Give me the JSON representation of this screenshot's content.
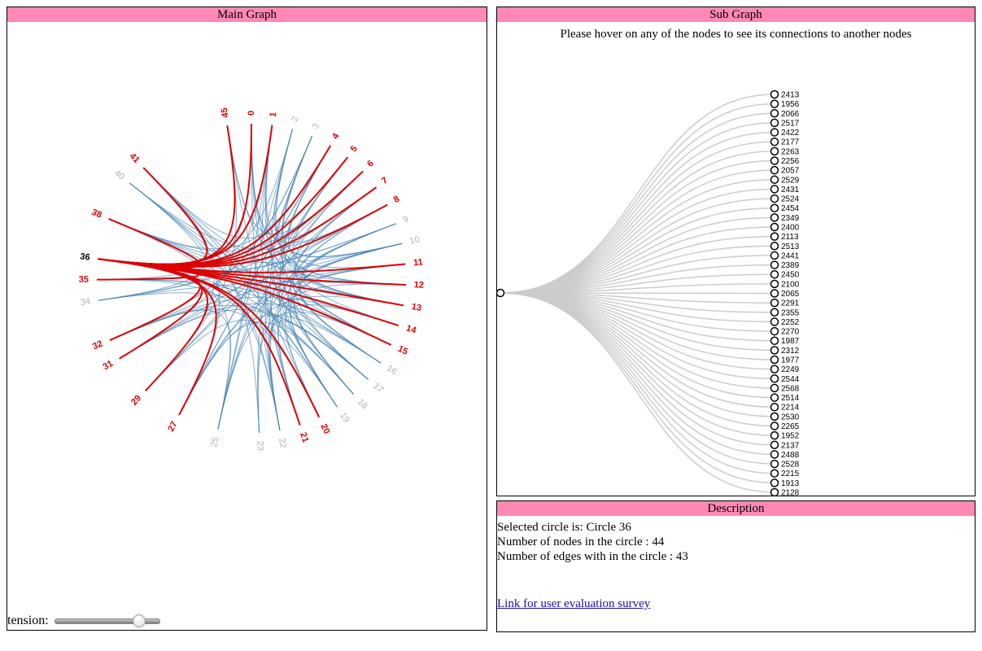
{
  "main": {
    "title": "Main Graph",
    "tension_label": "tension:",
    "tension_value": 0.8,
    "nodes": [
      {
        "label": "45",
        "state": "red"
      },
      {
        "label": "0",
        "state": "red"
      },
      {
        "label": "1",
        "state": "red"
      },
      {
        "label": "2",
        "state": "grey"
      },
      {
        "label": "3",
        "state": "grey"
      },
      {
        "label": "4",
        "state": "red"
      },
      {
        "label": "5",
        "state": "red"
      },
      {
        "label": "6",
        "state": "red"
      },
      {
        "label": "7",
        "state": "red"
      },
      {
        "label": "8",
        "state": "red"
      },
      {
        "label": "9",
        "state": "grey"
      },
      {
        "label": "10",
        "state": "grey"
      },
      {
        "label": "11",
        "state": "red"
      },
      {
        "label": "12",
        "state": "red"
      },
      {
        "label": "13",
        "state": "red"
      },
      {
        "label": "14",
        "state": "red"
      },
      {
        "label": "15",
        "state": "red"
      },
      {
        "label": "16",
        "state": "grey"
      },
      {
        "label": "17",
        "state": "grey"
      },
      {
        "label": "18",
        "state": "grey"
      },
      {
        "label": "19",
        "state": "grey"
      },
      {
        "label": "20",
        "state": "red"
      },
      {
        "label": "21",
        "state": "red"
      },
      {
        "label": "22",
        "state": "grey"
      },
      {
        "label": "23",
        "state": "grey"
      },
      {
        "label": "25",
        "state": "grey"
      },
      {
        "label": "27",
        "state": "red"
      },
      {
        "label": "29",
        "state": "red"
      },
      {
        "label": "31",
        "state": "red"
      },
      {
        "label": "32",
        "state": "red"
      },
      {
        "label": "34",
        "state": "grey"
      },
      {
        "label": "35",
        "state": "red"
      },
      {
        "label": "36",
        "state": "selected"
      },
      {
        "label": "38",
        "state": "red"
      },
      {
        "label": "40",
        "state": "grey"
      },
      {
        "label": "41",
        "state": "red"
      }
    ],
    "selected_node": "36",
    "colors": {
      "red": "#dd0000",
      "grey": "#b3b3b3",
      "selected": "#000000",
      "edge_blue": "#4682b4",
      "edge_red": "#dd0000"
    }
  },
  "sub": {
    "title": "Sub Graph",
    "hint": "Please hover on any of the nodes to see its connections to another nodes",
    "leaves": [
      "2413",
      "1956",
      "2066",
      "2517",
      "2422",
      "2177",
      "2263",
      "2256",
      "2057",
      "2529",
      "2431",
      "2524",
      "2454",
      "2349",
      "2400",
      "2113",
      "2513",
      "2441",
      "2389",
      "2450",
      "2100",
      "2065",
      "2291",
      "2355",
      "2252",
      "2270",
      "1987",
      "2312",
      "1977",
      "2249",
      "2544",
      "2568",
      "2514",
      "2214",
      "2530",
      "2265",
      "1952",
      "2137",
      "2488",
      "2528",
      "2215",
      "1913",
      "2128"
    ],
    "link_color": "#cccccc"
  },
  "description": {
    "title": "Description",
    "selected_line": "Selected circle is: Circle 36",
    "nodes_line": "Number of nodes in the circle : 44",
    "edges_line": "Number of edges with in the circle : 43",
    "survey_link": "Link for user evaluation survey"
  }
}
